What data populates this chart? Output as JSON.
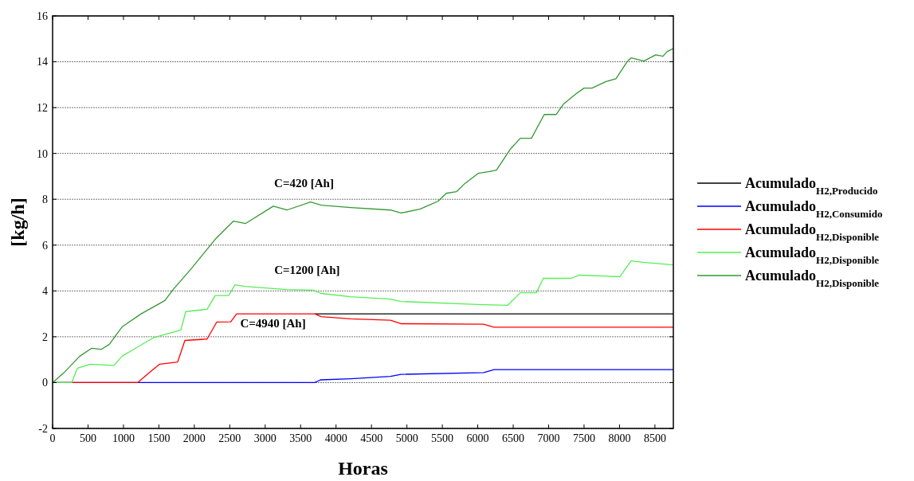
{
  "chart_data": {
    "type": "line",
    "xlabel": "Horas",
    "ylabel": "[kg/h]",
    "xlim": [
      0,
      8760
    ],
    "ylim": [
      -2,
      16
    ],
    "xticks": [
      0,
      500,
      1000,
      1500,
      2000,
      2500,
      3000,
      3500,
      4000,
      4500,
      5000,
      5500,
      6000,
      6500,
      7000,
      7500,
      8000,
      8500
    ],
    "yticks": [
      -2,
      0,
      2,
      4,
      6,
      8,
      10,
      12,
      14,
      16
    ],
    "grid": "y",
    "legend": "right",
    "line_style": "solid",
    "marker": "none",
    "annotations": [
      "C=420 [Ah]",
      "C=1200 [Ah]",
      "C=4940 [Ah]"
    ],
    "series": [
      {
        "name": "Acumulado$_{H2,Producido}$",
        "color": "#000000",
        "x": [
          3700,
          8760
        ],
        "values": [
          3.0,
          3.0
        ]
      },
      {
        "name": "Acumulado$_{H2,Consumido}$",
        "color": "#0000ff",
        "x": [
          0,
          3700,
          3780,
          4206,
          4768,
          4915,
          6084,
          6230,
          8760
        ],
        "values": [
          0,
          0,
          0.12,
          0.17,
          0.27,
          0.36,
          0.44,
          0.57,
          0.57
        ]
      },
      {
        "name": "Acumulado$_{H2,Disponible}$",
        "color": "#ff0000",
        "x": [
          0,
          1200,
          1360,
          1507,
          1765,
          1867,
          2180,
          2316,
          2514,
          2597,
          3700,
          3790,
          4206,
          4768,
          4915,
          6084,
          6230,
          8760
        ],
        "values": [
          0,
          0,
          0.42,
          0.8,
          0.9,
          1.84,
          1.9,
          2.64,
          2.65,
          3.0,
          3.0,
          2.88,
          2.78,
          2.72,
          2.57,
          2.55,
          2.42,
          2.42
        ]
      },
      {
        "name": "Acumulado$_{H2,Disponible}$",
        "color": "#55ee55",
        "x": [
          0,
          270,
          350,
          530,
          865,
          980,
          1170,
          1430,
          1810,
          1880,
          2180,
          2295,
          2484,
          2575,
          2710,
          3306,
          3677,
          3790,
          4206,
          4768,
          4915,
          6084,
          6420,
          6600,
          6826,
          6926,
          7320,
          7433,
          8006,
          8164,
          8333,
          8760
        ],
        "values": [
          0,
          0,
          0.63,
          0.8,
          0.75,
          1.15,
          1.5,
          1.97,
          2.3,
          3.1,
          3.2,
          3.8,
          3.8,
          4.27,
          4.2,
          4.06,
          4.03,
          3.89,
          3.75,
          3.64,
          3.54,
          3.4,
          3.37,
          3.92,
          3.92,
          4.55,
          4.55,
          4.69,
          4.62,
          5.31,
          5.25,
          5.14
        ]
      },
      {
        "name": "Acumulado$_{H2,Disponible}$",
        "color": "#339933",
        "x": [
          0,
          157,
          382,
          551,
          686,
          798,
          980,
          1248,
          1585,
          1698,
          1957,
          2294,
          2553,
          2721,
          3115,
          3306,
          3643,
          3790,
          4206,
          4768,
          4915,
          5184,
          5443,
          5555,
          5700,
          5815,
          6005,
          6151,
          6264,
          6455,
          6600,
          6758,
          6938,
          7107,
          7208,
          7388,
          7500,
          7613,
          7804,
          7950,
          8107,
          8164,
          8344,
          8512,
          8614,
          8670,
          8760
        ],
        "values": [
          0,
          0.42,
          1.15,
          1.5,
          1.45,
          1.66,
          2.43,
          3.0,
          3.58,
          4.05,
          4.97,
          6.25,
          7.05,
          6.94,
          7.7,
          7.53,
          7.88,
          7.74,
          7.64,
          7.53,
          7.4,
          7.57,
          7.92,
          8.26,
          8.33,
          8.68,
          9.13,
          9.2,
          9.27,
          10.17,
          10.66,
          10.66,
          11.7,
          11.7,
          12.15,
          12.6,
          12.85,
          12.85,
          13.13,
          13.26,
          14.0,
          14.17,
          14.03,
          14.3,
          14.24,
          14.44,
          14.58
        ]
      }
    ]
  }
}
